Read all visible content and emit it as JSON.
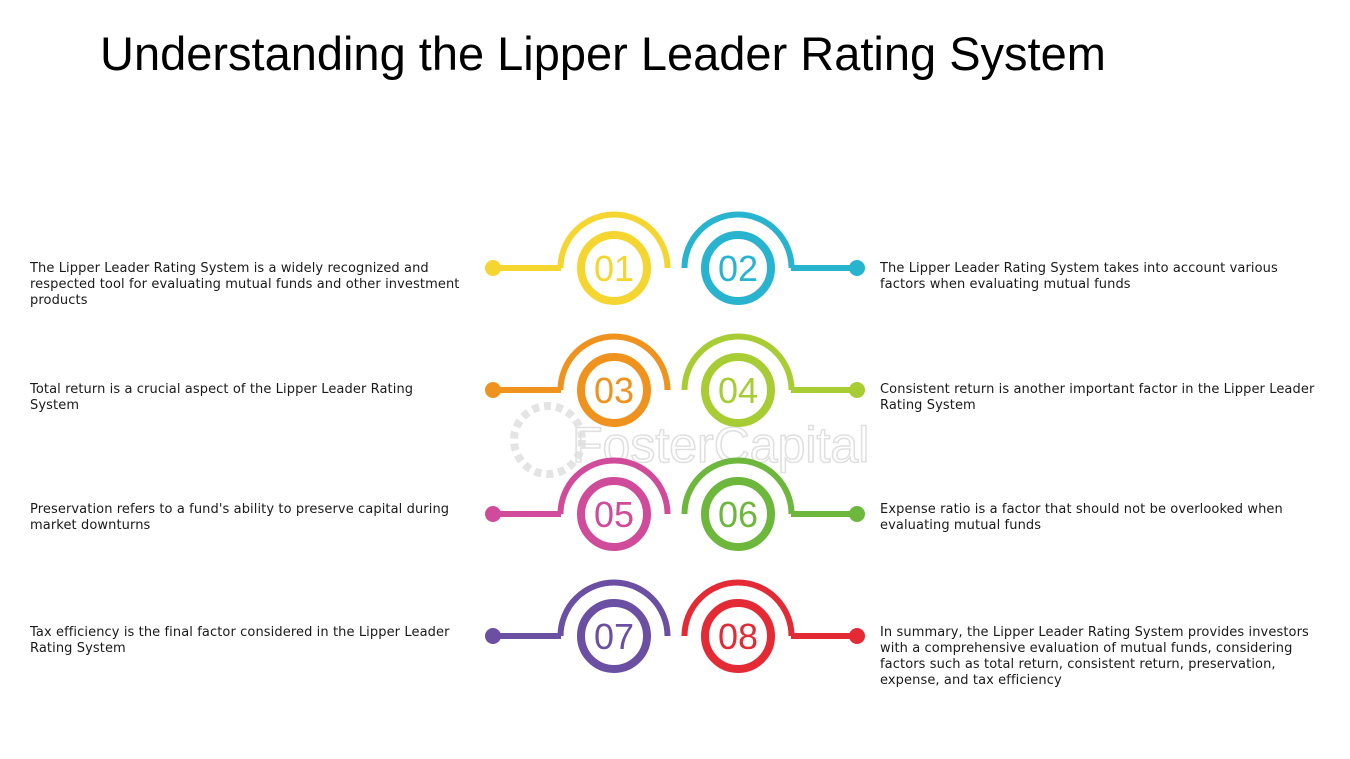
{
  "title": "Understanding the Lipper Leader Rating System",
  "watermark": "FosterCapital",
  "colors": {
    "01": "#F5D530",
    "02": "#28B4CF",
    "03": "#F0931E",
    "04": "#A8CD34",
    "05": "#D04B9A",
    "06": "#6DB73D",
    "07": "#6A4FA3",
    "08": "#E42A34"
  },
  "items": [
    {
      "number": "01",
      "text": "The Lipper Leader Rating System is a widely recognized and respected tool for evaluating mutual funds and other investment products"
    },
    {
      "number": "02",
      "text": "The Lipper Leader Rating System takes into account various factors when evaluating mutual funds"
    },
    {
      "number": "03",
      "text": "Total return is a crucial aspect of the Lipper Leader Rating System"
    },
    {
      "number": "04",
      "text": "Consistent return is another important factor in the Lipper Leader Rating System"
    },
    {
      "number": "05",
      "text": "Preservation refers to a fund's ability to preserve capital during market downturns"
    },
    {
      "number": "06",
      "text": "Expense ratio is a factor that should not be overlooked when evaluating mutual funds"
    },
    {
      "number": "07",
      "text": "Tax efficiency is the final factor considered in the Lipper Leader Rating System"
    },
    {
      "number": "08",
      "text": "In summary, the Lipper Leader Rating System provides investors with a comprehensive evaluation of mutual funds, considering factors such as total return, consistent return, preservation, expense, and tax efficiency"
    }
  ]
}
